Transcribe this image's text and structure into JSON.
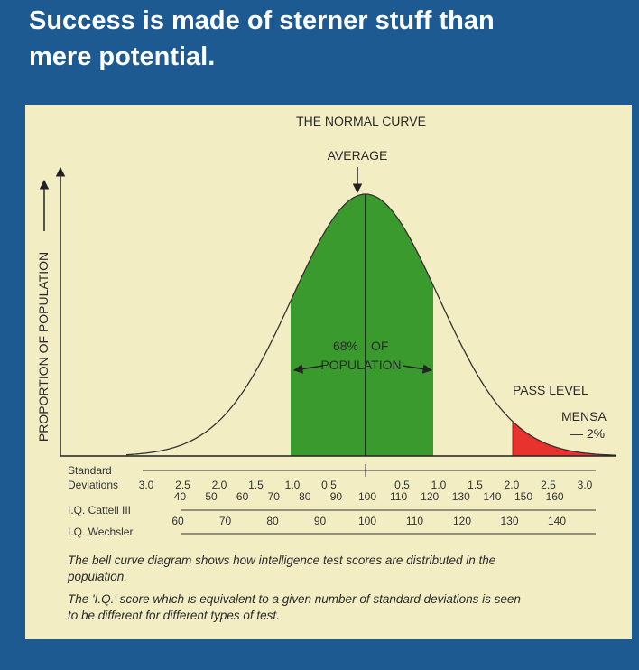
{
  "header": {
    "title_lines": [
      "Success is made of sterner stuff than",
      "mere potential."
    ]
  },
  "diagram": {
    "title": "THE NORMAL CURVE",
    "average_label": "AVERAGE",
    "y_axis_label": "PROPORTION OF POPULATION",
    "inside_label": [
      "68%",
      "OF",
      "POPULATION"
    ],
    "pass_level": "PASS LEVEL",
    "mensa": "MENSA",
    "mensa_share": "— 2%",
    "scales": [
      {
        "label_lines": [
          "Standard",
          "Deviations"
        ],
        "ticks": [
          "3.0",
          "2.5",
          "2.0",
          "1.5",
          "1.0",
          "0.5",
          "0.5",
          "1.0",
          "1.5",
          "2.0",
          "2.5",
          "3.0"
        ]
      },
      {
        "label_lines": [
          "I.Q. Cattell III"
        ],
        "ticks": [
          "40",
          "50",
          "60",
          "70",
          "80",
          "90",
          "100",
          "110",
          "120",
          "130",
          "140",
          "150",
          "160"
        ]
      },
      {
        "label_lines": [
          "I.Q. Wechsler"
        ],
        "ticks": [
          "60",
          "70",
          "80",
          "90",
          "100",
          "110",
          "120",
          "130",
          "140"
        ]
      }
    ]
  },
  "caption": [
    "The bell curve diagram shows how intelligence test scores are distributed in the",
    "population.",
    "The 'I.Q.' score which is equivalent to a given number of standard deviations is seen",
    "to be different for different types of test."
  ]
}
